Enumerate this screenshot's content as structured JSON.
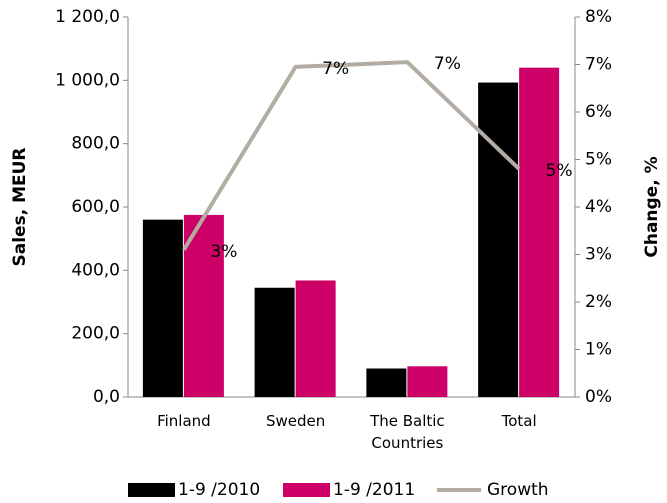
{
  "chart_data": {
    "type": "bar_line",
    "categories": [
      "Finland",
      "Sweden",
      "The Baltic Countries",
      "Total"
    ],
    "series": [
      {
        "name": "1-9 /2010",
        "color": "#000000",
        "values": [
          560,
          345,
          90,
          993
        ]
      },
      {
        "name": "1-9 /2011",
        "color": "#cc0066",
        "values": [
          575,
          368,
          97,
          1040
        ]
      },
      {
        "name": "Growth",
        "color": "#b3aca4",
        "axis": "y2",
        "values": [
          3.1,
          6.95,
          7.05,
          4.8
        ],
        "value_labels": [
          "3%",
          "7%",
          "7%",
          "5%"
        ]
      }
    ],
    "ylabel": "Sales, MEUR",
    "y2label": "Change, %",
    "ylim": [
      0,
      1200
    ],
    "yticks": [
      {
        "value": 0,
        "label": "0,0"
      },
      {
        "value": 200,
        "label": "200,0"
      },
      {
        "value": 400,
        "label": "400,0"
      },
      {
        "value": 600,
        "label": "600,0"
      },
      {
        "value": 800,
        "label": "800,0"
      },
      {
        "value": 1000,
        "label": "1 000,0"
      },
      {
        "value": 1200,
        "label": "1 200,0"
      }
    ],
    "y2lim": [
      0,
      8
    ],
    "y2ticks": [
      {
        "value": 0,
        "label": "0%"
      },
      {
        "value": 1,
        "label": "1%"
      },
      {
        "value": 2,
        "label": "2%"
      },
      {
        "value": 3,
        "label": "3%"
      },
      {
        "value": 4,
        "label": "4%"
      },
      {
        "value": 5,
        "label": "5%"
      },
      {
        "value": 6,
        "label": "6%"
      },
      {
        "value": 7,
        "label": "7%"
      },
      {
        "value": 8,
        "label": "8%"
      }
    ],
    "grid": false,
    "legend": "bottom"
  }
}
